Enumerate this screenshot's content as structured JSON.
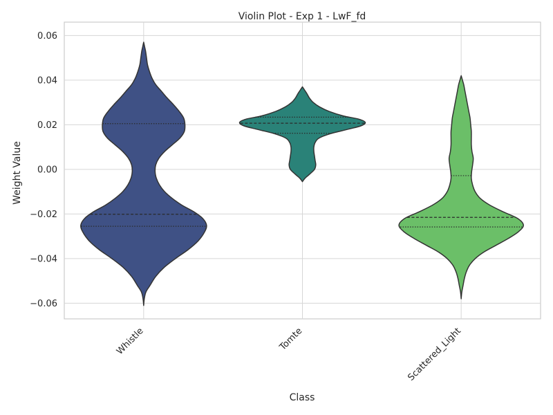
{
  "chart_data": {
    "type": "violin",
    "title": "Violin Plot - Exp 1 - LwF_fd",
    "xlabel": "Class",
    "ylabel": "Weight Value",
    "ylim": [
      -0.067,
      0.066
    ],
    "yticks": [
      0.06,
      0.04,
      0.02,
      0.0,
      -0.02,
      -0.04,
      -0.06
    ],
    "ytick_labels": [
      "0.06",
      "0.04",
      "0.02",
      "0.00",
      "−0.02",
      "−0.04",
      "−0.06"
    ],
    "categories": [
      "Whistle",
      "Tomte",
      "Scattered_Light"
    ],
    "grid": true,
    "series": [
      {
        "category": "Whistle",
        "color": "#3f5185",
        "min": -0.061,
        "max": 0.057,
        "q1": -0.0255,
        "median": -0.0201,
        "q3": 0.0205,
        "density": [
          [
            -0.061,
            0.0
          ],
          [
            -0.058,
            0.01
          ],
          [
            -0.055,
            0.035
          ],
          [
            -0.052,
            0.1
          ],
          [
            -0.048,
            0.19
          ],
          [
            -0.044,
            0.32
          ],
          [
            -0.04,
            0.5
          ],
          [
            -0.036,
            0.7
          ],
          [
            -0.032,
            0.86
          ],
          [
            -0.028,
            0.96
          ],
          [
            -0.025,
            0.99
          ],
          [
            -0.022,
            0.93
          ],
          [
            -0.019,
            0.79
          ],
          [
            -0.016,
            0.6
          ],
          [
            -0.013,
            0.45
          ],
          [
            -0.01,
            0.33
          ],
          [
            -0.007,
            0.25
          ],
          [
            -0.004,
            0.2
          ],
          [
            -0.001,
            0.18
          ],
          [
            0.002,
            0.19
          ],
          [
            0.005,
            0.24
          ],
          [
            0.008,
            0.33
          ],
          [
            0.011,
            0.45
          ],
          [
            0.014,
            0.57
          ],
          [
            0.017,
            0.64
          ],
          [
            0.02,
            0.65
          ],
          [
            0.023,
            0.63
          ],
          [
            0.026,
            0.56
          ],
          [
            0.029,
            0.47
          ],
          [
            0.032,
            0.37
          ],
          [
            0.035,
            0.28
          ],
          [
            0.038,
            0.19
          ],
          [
            0.041,
            0.13
          ],
          [
            0.044,
            0.09
          ],
          [
            0.047,
            0.06
          ],
          [
            0.05,
            0.045
          ],
          [
            0.053,
            0.03
          ],
          [
            0.055,
            0.015
          ],
          [
            0.057,
            0.0
          ]
        ]
      },
      {
        "category": "Tomte",
        "color": "#2a8278",
        "min": -0.0055,
        "max": 0.037,
        "q1": 0.0162,
        "median": 0.0207,
        "q3": 0.0234,
        "density": [
          [
            -0.0055,
            0.0
          ],
          [
            -0.004,
            0.04
          ],
          [
            -0.002,
            0.12
          ],
          [
            0.0,
            0.19
          ],
          [
            0.002,
            0.21
          ],
          [
            0.004,
            0.2
          ],
          [
            0.006,
            0.19
          ],
          [
            0.008,
            0.18
          ],
          [
            0.01,
            0.18
          ],
          [
            0.012,
            0.2
          ],
          [
            0.014,
            0.26
          ],
          [
            0.016,
            0.44
          ],
          [
            0.018,
            0.72
          ],
          [
            0.0195,
            0.92
          ],
          [
            0.021,
            0.99
          ],
          [
            0.0225,
            0.89
          ],
          [
            0.024,
            0.64
          ],
          [
            0.026,
            0.42
          ],
          [
            0.028,
            0.27
          ],
          [
            0.03,
            0.17
          ],
          [
            0.032,
            0.11
          ],
          [
            0.034,
            0.07
          ],
          [
            0.0355,
            0.035
          ],
          [
            0.037,
            0.0
          ]
        ]
      },
      {
        "category": "Scattered_Light",
        "color": "#6bbf68",
        "min": -0.058,
        "max": 0.042,
        "q1": -0.0258,
        "median": -0.0215,
        "q3": -0.0028,
        "density": [
          [
            -0.058,
            0.0
          ],
          [
            -0.055,
            0.01
          ],
          [
            -0.052,
            0.03
          ],
          [
            -0.049,
            0.05
          ],
          [
            -0.046,
            0.08
          ],
          [
            -0.043,
            0.13
          ],
          [
            -0.04,
            0.22
          ],
          [
            -0.037,
            0.36
          ],
          [
            -0.034,
            0.55
          ],
          [
            -0.031,
            0.74
          ],
          [
            -0.028,
            0.9
          ],
          [
            -0.025,
            0.98
          ],
          [
            -0.022,
            0.89
          ],
          [
            -0.019,
            0.66
          ],
          [
            -0.016,
            0.45
          ],
          [
            -0.013,
            0.3
          ],
          [
            -0.01,
            0.22
          ],
          [
            -0.007,
            0.18
          ],
          [
            -0.004,
            0.16
          ],
          [
            -0.001,
            0.165
          ],
          [
            0.002,
            0.18
          ],
          [
            0.005,
            0.19
          ],
          [
            0.008,
            0.17
          ],
          [
            0.011,
            0.16
          ],
          [
            0.014,
            0.16
          ],
          [
            0.017,
            0.16
          ],
          [
            0.02,
            0.15
          ],
          [
            0.023,
            0.14
          ],
          [
            0.026,
            0.12
          ],
          [
            0.029,
            0.1
          ],
          [
            0.032,
            0.08
          ],
          [
            0.035,
            0.06
          ],
          [
            0.038,
            0.04
          ],
          [
            0.04,
            0.02
          ],
          [
            0.042,
            0.0
          ]
        ]
      }
    ]
  }
}
